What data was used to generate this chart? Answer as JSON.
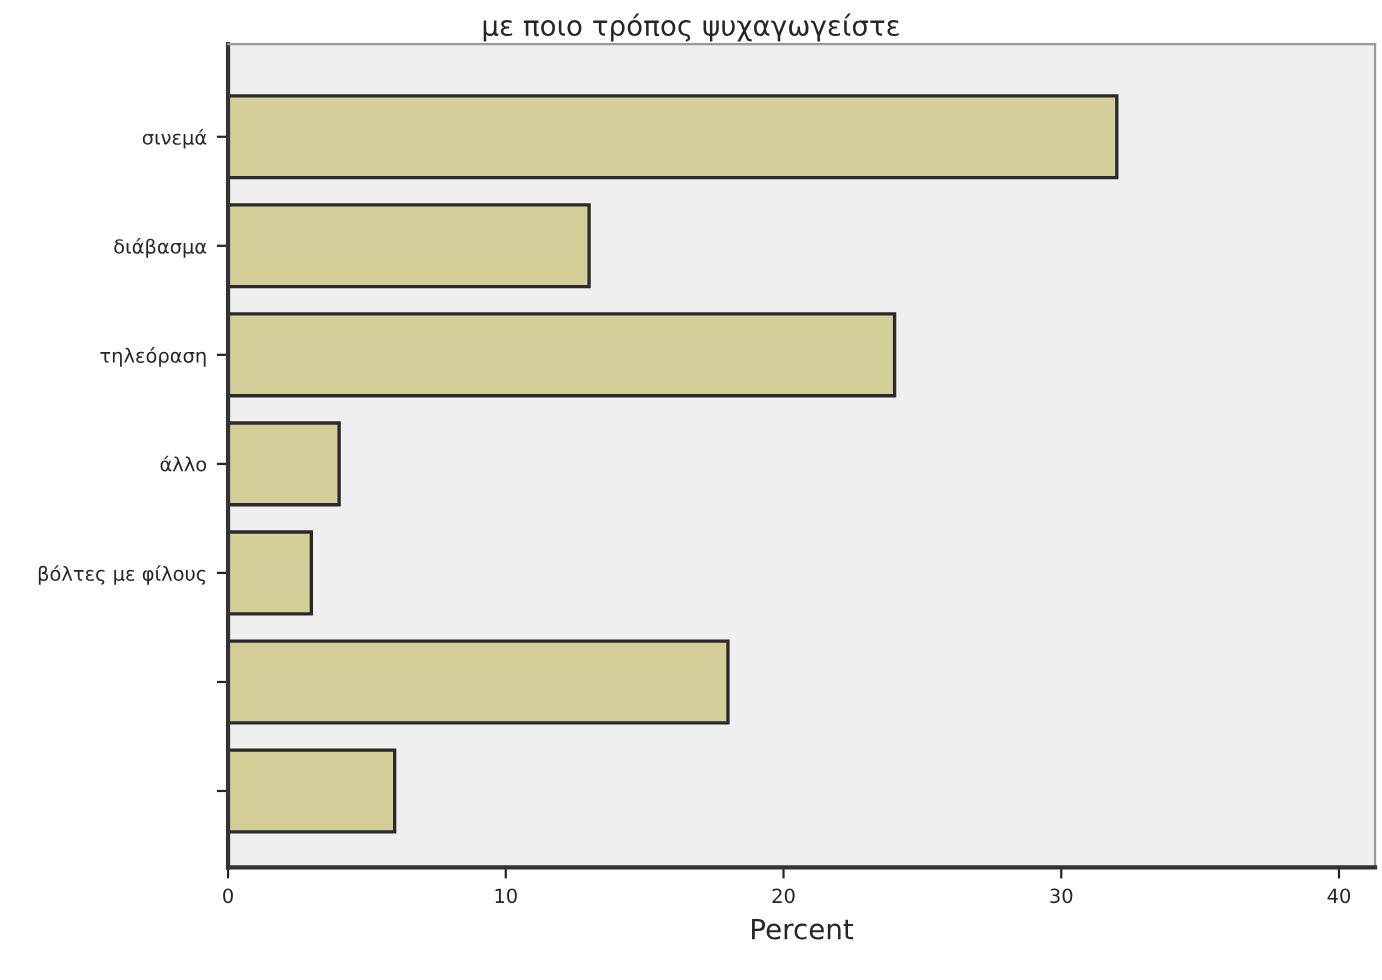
{
  "chart_data": {
    "type": "bar",
    "orientation": "horizontal",
    "title": "με ποιο τρόπος ψυχαγωγείστε",
    "xlabel": "Percent",
    "categories": [
      "σινεμά",
      "διάβασμα",
      "τηλεόραση",
      "άλλο",
      "βόλτες με φίλους",
      null,
      null
    ],
    "values": [
      32,
      13,
      24,
      4,
      3,
      18,
      6
    ],
    "color": "#d3cd97",
    "xlim": [
      0,
      41.3
    ],
    "xticks": [
      0,
      10,
      20,
      30,
      40
    ],
    "grid": false,
    "legend": false
  }
}
